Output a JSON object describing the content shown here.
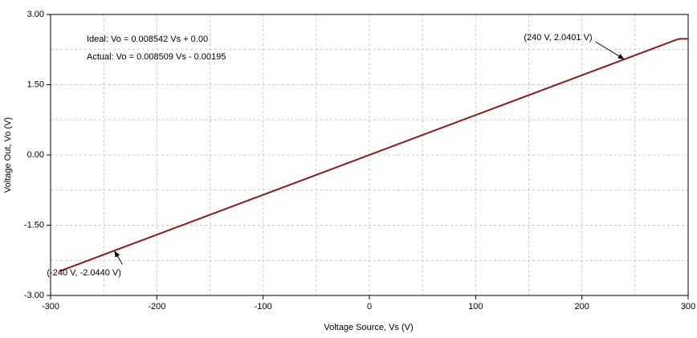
{
  "chart_data": {
    "type": "line",
    "xlabel": "Voltage Source, Vs (V)",
    "ylabel": "Voltage Out, Vo (V)",
    "x": [
      -292,
      -289,
      289,
      292,
      300
    ],
    "series": [
      {
        "color": "#8b1a1a",
        "values": [
          -2.48,
          -2.46,
          2.46,
          2.48,
          2.48
        ]
      }
    ],
    "xlim": [
      -300,
      300
    ],
    "ylim": [
      -3,
      3
    ],
    "xticks": [
      -300,
      -200,
      -100,
      0,
      100,
      200,
      300
    ],
    "yticks": [
      {
        "value": -3,
        "label": "-3.00"
      },
      {
        "value": -1.5,
        "label": "-1.50"
      },
      {
        "value": 0,
        "label": "0.00"
      },
      {
        "value": 1.5,
        "label": "1.50"
      },
      {
        "value": 3,
        "label": "3.00"
      }
    ],
    "xgrid": [
      -250,
      -200,
      -150,
      -100,
      -50,
      0,
      50,
      100,
      150,
      200,
      250
    ],
    "ygrid": [
      -2.25,
      -1.5,
      -0.75,
      0,
      0.75,
      1.5,
      2.25
    ],
    "grid": true,
    "equations": [
      "Ideal: Vo = 0.008542 Vs + 0.00",
      "Actual: Vo = 0.008509 Vs - 0.00195"
    ],
    "annotations": [
      {
        "text": "(240 V, 2.0401 V)",
        "x": 240,
        "y": 2.0401
      },
      {
        "text": "(-240 V, -2.0440 V)",
        "x": -240,
        "y": -2.044
      }
    ]
  }
}
